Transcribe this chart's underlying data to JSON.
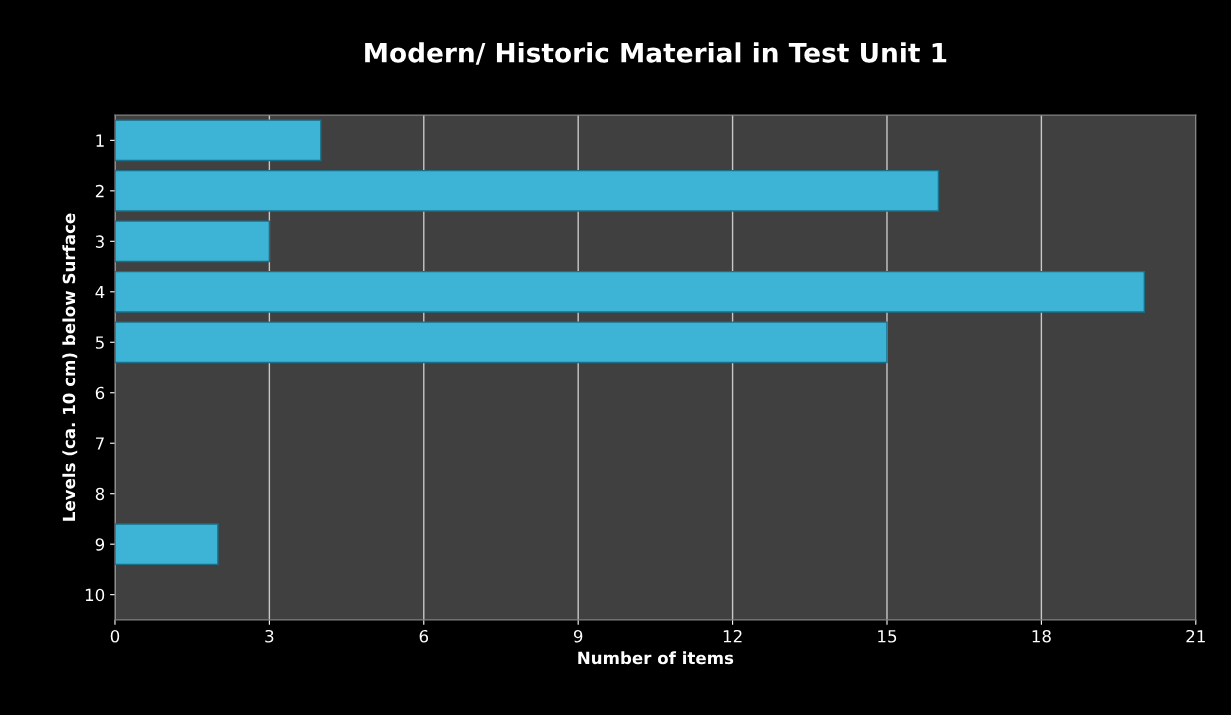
{
  "chart_data": {
    "type": "bar",
    "orientation": "horizontal",
    "title": "Modern/ Historic Material in Test Unit 1",
    "xlabel": "Number of items",
    "ylabel": "Levels (ca. 10 cm) below Surface",
    "categories": [
      "1",
      "2",
      "3",
      "4",
      "5",
      "6",
      "7",
      "8",
      "9",
      "10"
    ],
    "values": [
      4,
      16,
      3,
      20,
      15,
      null,
      null,
      null,
      2,
      null
    ],
    "color": "#3db4d6",
    "xlim": [
      0,
      21
    ],
    "xticks": [
      0,
      3,
      6,
      9,
      12,
      15,
      18,
      21
    ],
    "grid": "x"
  }
}
